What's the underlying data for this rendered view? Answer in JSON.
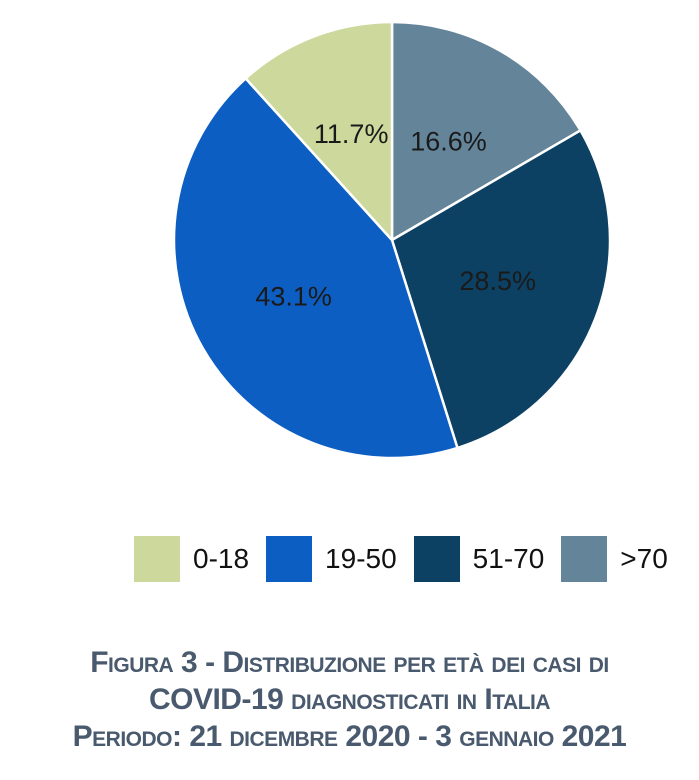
{
  "figure": {
    "caption": {
      "line1": "Figura 3 - Distribuzione per età dei casi di",
      "line2": "COVID-19 diagnosticati in Italia",
      "line3": "Periodo: 21 dicembre 2020 - 3 gennaio 2021",
      "color": "#4a5a6e"
    }
  },
  "chart_data": {
    "type": "pie",
    "title": "Figura 3 - Distribuzione per età dei casi di COVID-19 diagnosticati in Italia. Periodo: 21 dicembre 2020 - 3 gennaio 2021",
    "categories": [
      "0-18",
      "19-50",
      "51-70",
      ">70"
    ],
    "values": [
      11.7,
      43.1,
      28.5,
      16.6
    ],
    "unit": "%",
    "start_angle": "12 o'clock",
    "slices_clockwise_from_top": [
      {
        "label": ">70",
        "value": 16.6,
        "pct_label": "16.6%",
        "color": "#64849a"
      },
      {
        "label": "51-70",
        "value": 28.5,
        "pct_label": "28.5%",
        "color": "#0d4164"
      },
      {
        "label": "19-50",
        "value": 43.1,
        "pct_label": "43.1%",
        "color": "#0d5ec2"
      },
      {
        "label": "0-18",
        "value": 11.7,
        "pct_label": "11.7%",
        "color": "#cdd89c"
      }
    ],
    "legend": [
      {
        "label": "0-18",
        "color": "#cdd89c"
      },
      {
        "label": "19-50",
        "color": "#0d5ec2"
      },
      {
        "label": "51-70",
        "color": "#0d4164"
      },
      {
        "label": ">70",
        "color": "#64849a"
      }
    ],
    "legend_position": "bottom",
    "label_color": "#1a1a1a",
    "slice_border_color": "#ffffff",
    "grid": false
  }
}
